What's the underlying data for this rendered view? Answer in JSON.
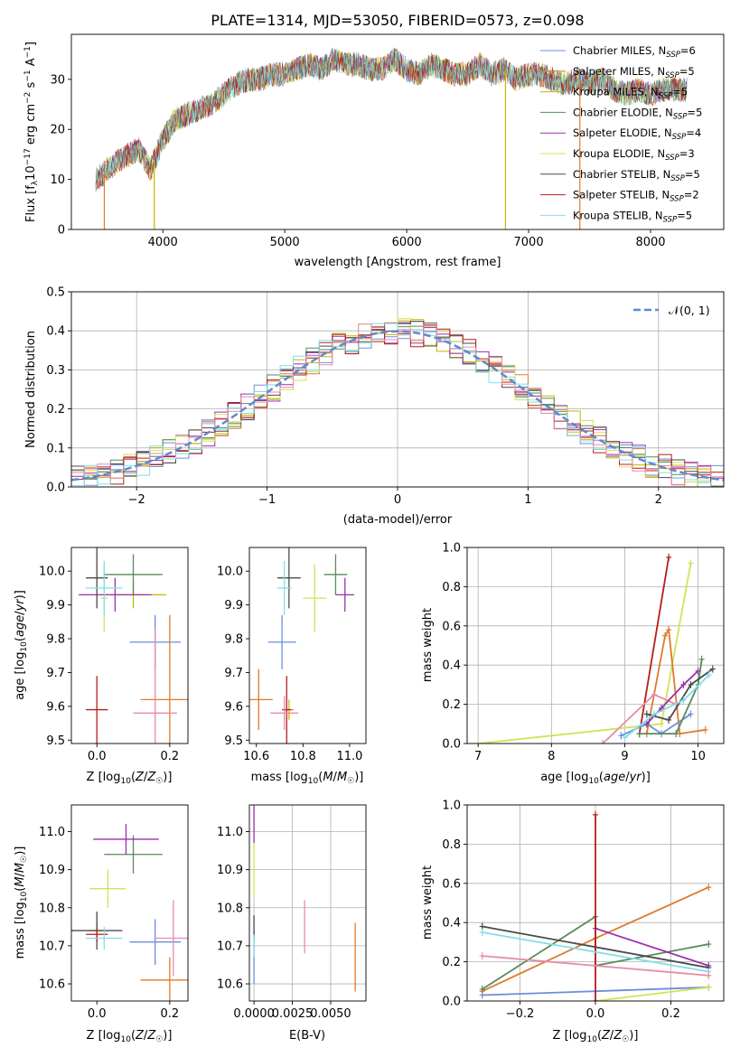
{
  "title": "PLATE=1314, MJD=53050, FIBERID=0573, z=0.098",
  "colors": {
    "blue": "#6a8fdc",
    "orange": "#e07a2a",
    "gold": "#c8b400",
    "green": "#5a8a5a",
    "purple": "#9b2fae",
    "lime": "#d4e157",
    "gray": "#4a4a4a",
    "red": "#b71c1c",
    "cyan": "#80deea",
    "pink": "#e88aa8",
    "ncurve": "#5b8bd0"
  },
  "chart_data": [
    {
      "type": "line",
      "id": "spectrum",
      "xlabel": "wavelength [Angstrom, rest frame]",
      "ylabel": "Flux [f_λ10^-17 erg cm^-2 s^-1 A^-1]",
      "xlim": [
        3250,
        8600
      ],
      "ylim": [
        0,
        39
      ],
      "xticks": [
        "4000",
        "5000",
        "6000",
        "7000",
        "8000"
      ],
      "yticks": [
        "0",
        "10",
        "20",
        "30"
      ],
      "legend_position": "upper-right",
      "series": [
        {
          "name": "Chabrier MILES, N_SSP=6",
          "color": "blue"
        },
        {
          "name": "Salpeter MILES, N_SSP=5",
          "color": "orange"
        },
        {
          "name": "Kroupa MILES, N_SSP=5",
          "color": "gold"
        },
        {
          "name": "Chabrier ELODIE, N_SSP=5",
          "color": "green"
        },
        {
          "name": "Salpeter ELODIE, N_SSP=4",
          "color": "purple"
        },
        {
          "name": "Kroupa ELODIE, N_SSP=3",
          "color": "lime"
        },
        {
          "name": "Chabrier STELIB, N_SSP=5",
          "color": "gray"
        },
        {
          "name": "Salpeter STELIB, N_SSP=2",
          "color": "red"
        },
        {
          "name": "Kroupa STELIB, N_SSP=5",
          "color": "cyan"
        }
      ],
      "envelope": {
        "x": [
          3450,
          3550,
          3650,
          3800,
          3900,
          4000,
          4100,
          4200,
          4300,
          4400,
          4500,
          4600,
          4700,
          4800,
          4900,
          5000,
          5100,
          5200,
          5300,
          5400,
          5500,
          5600,
          5700,
          5800,
          5900,
          6000,
          6100,
          6200,
          6300,
          6400,
          6500,
          6600,
          6700,
          6800,
          6900,
          7000,
          7100,
          7200,
          7300,
          7400,
          7500,
          7600,
          7700,
          7800,
          7900,
          8000,
          8100,
          8200,
          8300
        ],
        "y": [
          10,
          12,
          14,
          16,
          12,
          18,
          22,
          23,
          24,
          25,
          27,
          29,
          30,
          30,
          31,
          31,
          32,
          33,
          32,
          34,
          33,
          33,
          32,
          32,
          34,
          32,
          31,
          33,
          32,
          31,
          31,
          33,
          31,
          32,
          30,
          31,
          31,
          30,
          29,
          30,
          29,
          30,
          28,
          27,
          28,
          27,
          28,
          28,
          28
        ]
      },
      "drops": [
        {
          "x": 3520,
          "color": "orange"
        },
        {
          "x": 3930,
          "color": "gold"
        },
        {
          "x": 6810,
          "color": "gold"
        },
        {
          "x": 7420,
          "color": "orange"
        }
      ]
    },
    {
      "type": "bar",
      "id": "residual-histogram",
      "xlabel": "(data-model)/error",
      "ylabel": "Normed distribution",
      "xlim": [
        -2.5,
        2.5
      ],
      "ylim": [
        0,
        0.5
      ],
      "xticks": [
        "−2",
        "−1",
        "0",
        "1",
        "2"
      ],
      "yticks": [
        "0.0",
        "0.1",
        "0.2",
        "0.3",
        "0.4",
        "0.5"
      ],
      "grid": true,
      "legend_position": "upper-right",
      "legend": [
        "𝒩(0, 1)"
      ],
      "bin_width": 0.1,
      "x_start": -2.5
    },
    {
      "type": "scatter",
      "id": "age-vs-Z",
      "xlabel": "Z [log10(Z/Z☉)]",
      "ylabel": "age [log10(age/yr)]",
      "xlim": [
        -0.07,
        0.25
      ],
      "ylim": [
        9.49,
        10.07
      ],
      "xticks": [
        "0.0",
        "0.2"
      ],
      "yticks": [
        "9.5",
        "9.6",
        "9.7",
        "9.8",
        "9.9",
        "10.0"
      ],
      "points": [
        {
          "color": "blue",
          "x": 0.16,
          "xerr": 0.07,
          "y": 9.79,
          "yerr": 0.08
        },
        {
          "color": "orange",
          "x": 0.2,
          "xerr": 0.08,
          "y": 9.62,
          "yerr": 0.25
        },
        {
          "color": "gold",
          "x": 0.1,
          "xerr": 0.09,
          "y": 9.93,
          "yerr": 0.04
        },
        {
          "color": "green",
          "x": 0.1,
          "xerr": 0.08,
          "y": 9.99,
          "yerr": 0.06
        },
        {
          "color": "purple",
          "x": 0.05,
          "xerr": 0.1,
          "y": 9.93,
          "yerr": 0.05
        },
        {
          "color": "lime",
          "x": 0.02,
          "xerr": 0.01,
          "y": 9.92,
          "yerr": 0.1
        },
        {
          "color": "gray",
          "x": 0.0,
          "xerr": 0.03,
          "y": 9.98,
          "yerr": 0.09
        },
        {
          "color": "red",
          "x": 0.0,
          "xerr": 0.03,
          "y": 9.59,
          "yerr": 0.1
        },
        {
          "color": "cyan",
          "x": 0.02,
          "xerr": 0.05,
          "y": 9.95,
          "yerr": 0.08
        },
        {
          "color": "pink",
          "x": 0.16,
          "xerr": 0.06,
          "y": 9.58,
          "yerr": 0.25
        }
      ]
    },
    {
      "type": "scatter",
      "id": "age-vs-mass",
      "xlabel": "mass [log10(M/M☉)]",
      "xlim": [
        10.57,
        11.07
      ],
      "ylim": [
        9.49,
        10.07
      ],
      "xticks": [
        "10.6",
        "10.8",
        "11.0"
      ],
      "yticks": [
        "9.5",
        "9.6",
        "9.7",
        "9.8",
        "9.9",
        "10.0"
      ],
      "points": [
        {
          "color": "blue",
          "x": 10.71,
          "xerr": 0.06,
          "y": 9.79,
          "yerr": 0.08
        },
        {
          "color": "orange",
          "x": 10.61,
          "xerr": 0.06,
          "y": 9.62,
          "yerr": 0.09
        },
        {
          "color": "gold",
          "x": 10.74,
          "xerr": 0.02,
          "y": 9.59,
          "yerr": 0.03
        },
        {
          "color": "green",
          "x": 10.94,
          "xerr": 0.05,
          "y": 9.99,
          "yerr": 0.06
        },
        {
          "color": "purple",
          "x": 10.98,
          "xerr": 0.04,
          "y": 9.93,
          "yerr": 0.05
        },
        {
          "color": "lime",
          "x": 10.85,
          "xerr": 0.05,
          "y": 9.92,
          "yerr": 0.1
        },
        {
          "color": "gray",
          "x": 10.74,
          "xerr": 0.05,
          "y": 9.98,
          "yerr": 0.09
        },
        {
          "color": "red",
          "x": 10.73,
          "xerr": 0.02,
          "y": 9.59,
          "yerr": 0.1
        },
        {
          "color": "cyan",
          "x": 10.72,
          "xerr": 0.03,
          "y": 9.95,
          "yerr": 0.08
        },
        {
          "color": "pink",
          "x": 10.72,
          "xerr": 0.06,
          "y": 9.58,
          "yerr": 0.05
        }
      ]
    },
    {
      "type": "line",
      "id": "weight-vs-age",
      "xlabel": "age [log10(age/yr)]",
      "ylabel": "mass weight",
      "xlim": [
        6.85,
        10.35
      ],
      "ylim": [
        0,
        1
      ],
      "xticks": [
        "7",
        "8",
        "9",
        "10"
      ],
      "yticks": [
        "0.0",
        "0.2",
        "0.4",
        "0.6",
        "0.8",
        "1.0"
      ],
      "grid": true,
      "series": [
        {
          "color": "lime",
          "x": [
            7.0,
            9.5,
            9.9
          ],
          "y": [
            0.0,
            0.1,
            0.92
          ]
        },
        {
          "color": "red",
          "x": [
            9.2,
            9.6
          ],
          "y": [
            0.05,
            0.95
          ]
        },
        {
          "color": "orange",
          "x": [
            9.3,
            9.55,
            9.6,
            9.75,
            10.1
          ],
          "y": [
            0.05,
            0.55,
            0.58,
            0.05,
            0.07
          ]
        },
        {
          "color": "pink",
          "x": [
            8.7,
            9.4,
            9.7
          ],
          "y": [
            0.0,
            0.25,
            0.2
          ]
        },
        {
          "color": "blue",
          "x": [
            8.95,
            9.3,
            9.5,
            9.9
          ],
          "y": [
            0.04,
            0.1,
            0.05,
            0.15
          ]
        },
        {
          "color": "green",
          "x": [
            9.2,
            9.7,
            10.0,
            10.05
          ],
          "y": [
            0.05,
            0.05,
            0.3,
            0.43
          ]
        },
        {
          "color": "purple",
          "x": [
            9.3,
            9.5,
            9.8,
            10.0
          ],
          "y": [
            0.1,
            0.18,
            0.3,
            0.37
          ]
        },
        {
          "color": "gray",
          "x": [
            9.3,
            9.6,
            9.9,
            10.2
          ],
          "y": [
            0.15,
            0.12,
            0.3,
            0.38
          ]
        },
        {
          "color": "cyan",
          "x": [
            9.0,
            9.4,
            9.8,
            10.15
          ],
          "y": [
            0.03,
            0.15,
            0.22,
            0.35
          ]
        }
      ]
    },
    {
      "type": "scatter",
      "id": "mass-vs-Z",
      "xlabel": "Z [log10(Z/Z☉)]",
      "ylabel": "mass [log10(M/M☉)]",
      "xlim": [
        -0.07,
        0.25
      ],
      "ylim": [
        10.555,
        11.07
      ],
      "xticks": [
        "0.0",
        "0.2"
      ],
      "yticks": [
        "10.6",
        "10.7",
        "10.8",
        "10.9",
        "11.0"
      ],
      "points": [
        {
          "color": "blue",
          "x": 0.16,
          "xerr": 0.07,
          "y": 10.71,
          "yerr": 0.06
        },
        {
          "color": "orange",
          "x": 0.2,
          "xerr": 0.08,
          "y": 10.61,
          "yerr": 0.06
        },
        {
          "color": "gold",
          "x": 0.0,
          "xerr": 0.02,
          "y": 10.74,
          "yerr": 0.02
        },
        {
          "color": "green",
          "x": 0.1,
          "xerr": 0.08,
          "y": 10.94,
          "yerr": 0.05
        },
        {
          "color": "purple",
          "x": 0.08,
          "xerr": 0.09,
          "y": 10.98,
          "yerr": 0.04
        },
        {
          "color": "lime",
          "x": 0.03,
          "xerr": 0.05,
          "y": 10.85,
          "yerr": 0.05
        },
        {
          "color": "gray",
          "x": 0.0,
          "xerr": 0.07,
          "y": 10.74,
          "yerr": 0.05
        },
        {
          "color": "red",
          "x": 0.0,
          "xerr": 0.03,
          "y": 10.73,
          "yerr": 0.02
        },
        {
          "color": "cyan",
          "x": 0.02,
          "xerr": 0.05,
          "y": 10.72,
          "yerr": 0.03
        },
        {
          "color": "pink",
          "x": 0.21,
          "xerr": 0.05,
          "y": 10.72,
          "yerr": 0.1
        }
      ]
    },
    {
      "type": "scatter",
      "id": "mass-vs-ebv",
      "xlabel": "E(B-V)",
      "xlim": [
        -0.0003,
        0.0073
      ],
      "ylim": [
        10.555,
        11.07
      ],
      "xticks": [
        "0.0000",
        "0.0025",
        "0.0050"
      ],
      "yticks": [
        "10.6",
        "10.7",
        "10.8",
        "10.9",
        "11.0"
      ],
      "points": [
        {
          "color": "blue",
          "x": 0.0,
          "y": 10.67,
          "yerr": 0.07
        },
        {
          "color": "purple",
          "x": 0.0,
          "y": 11.07,
          "yerr": 0.1
        },
        {
          "color": "lime",
          "x": 0.0,
          "y": 10.9,
          "yerr": 0.07
        },
        {
          "color": "gray",
          "x": 0.0,
          "y": 10.75,
          "yerr": 0.03
        },
        {
          "color": "cyan",
          "x": 0.0,
          "y": 10.7,
          "yerr": 0.03
        },
        {
          "color": "pink",
          "x": 0.0033,
          "y": 10.75,
          "yerr": 0.07
        },
        {
          "color": "orange",
          "x": 0.0066,
          "y": 10.67,
          "yerr": 0.09
        }
      ]
    },
    {
      "type": "line",
      "id": "weight-vs-Z",
      "xlabel": "Z [log10(Z/Z☉)]",
      "ylabel": "mass weight",
      "xlim": [
        -0.34,
        0.34
      ],
      "ylim": [
        0,
        1
      ],
      "xticks": [
        "−0.2",
        "0.0",
        "0.2"
      ],
      "yticks": [
        "0.0",
        "0.2",
        "0.4",
        "0.6",
        "0.8",
        "1.0"
      ],
      "grid": true,
      "series": [
        {
          "color": "blue",
          "x": [
            -0.3,
            0.0,
            0.3
          ],
          "y": [
            0.03,
            0.05,
            0.07
          ]
        },
        {
          "color": "orange",
          "x": [
            -0.3,
            0.0,
            0.3
          ],
          "y": [
            0.05,
            0.32,
            0.58
          ]
        },
        {
          "color": "green",
          "x": [
            -0.3,
            0.0,
            0.0,
            0.3
          ],
          "y": [
            0.06,
            0.43,
            0.18,
            0.29
          ]
        },
        {
          "color": "purple",
          "x": [
            0.0,
            0.3
          ],
          "y": [
            0.37,
            0.18
          ]
        },
        {
          "color": "lime",
          "x": [
            0.0,
            0.3
          ],
          "y": [
            0.0,
            0.07
          ]
        },
        {
          "color": "gray",
          "x": [
            -0.3,
            0.3
          ],
          "y": [
            0.38,
            0.17
          ]
        },
        {
          "color": "red",
          "x": [
            0.0,
            0.0
          ],
          "y": [
            0.0,
            0.95
          ]
        },
        {
          "color": "cyan",
          "x": [
            -0.3,
            0.3
          ],
          "y": [
            0.35,
            0.15
          ]
        },
        {
          "color": "pink",
          "x": [
            -0.3,
            0.3
          ],
          "y": [
            0.23,
            0.13
          ]
        }
      ]
    }
  ]
}
